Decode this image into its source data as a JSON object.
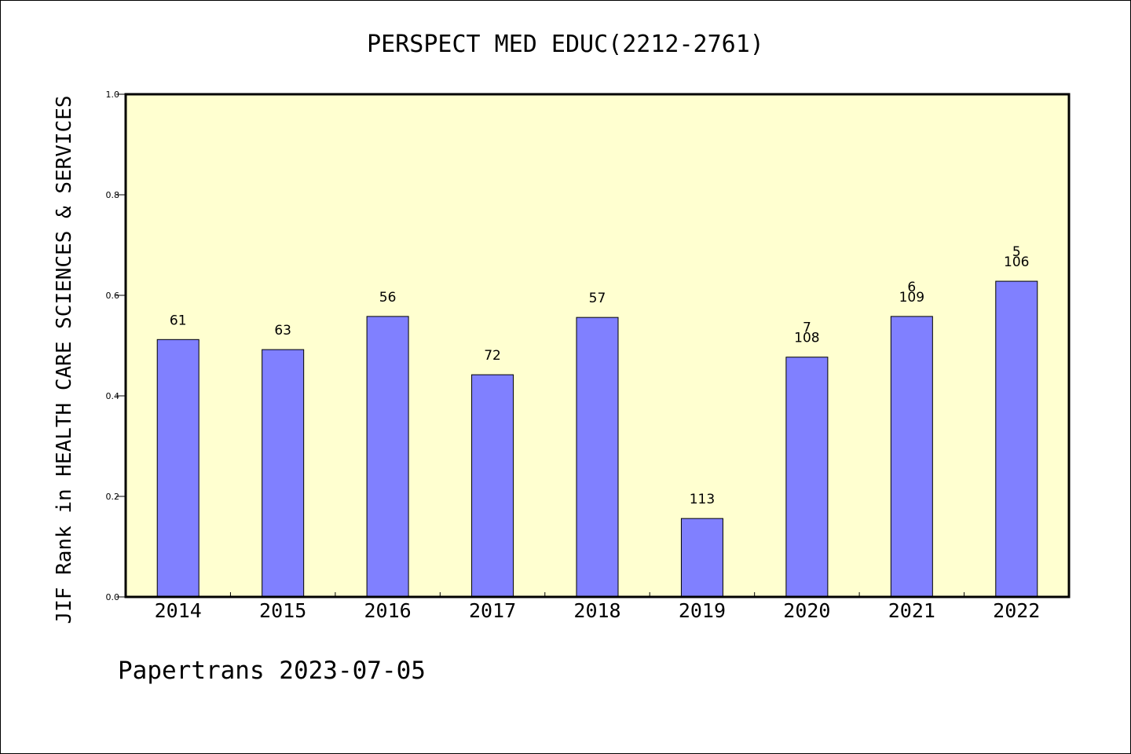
{
  "chart_data": {
    "type": "bar",
    "title": "PERSPECT MED EDUC(2212-2761)",
    "ylabel": "JIF Rank in HEALTH CARE SCIENCES & SERVICES",
    "xlabel": "",
    "ylim": [
      0,
      1
    ],
    "yticks": [
      "0.0",
      "0.2",
      "0.4",
      "0.6",
      "0.8",
      "1.0"
    ],
    "grid": false,
    "categories": [
      "2014",
      "2015",
      "2016",
      "2017",
      "2018",
      "2019",
      "2020",
      "2021",
      "2022"
    ],
    "values": [
      0.512,
      0.492,
      0.558,
      0.442,
      0.556,
      0.156,
      0.477,
      0.558,
      0.628
    ],
    "labels_top": [
      "",
      "",
      "",
      "",
      "",
      "",
      "7",
      "6",
      "5"
    ],
    "labels": [
      "61",
      "63",
      "56",
      "72",
      "57",
      "113",
      "108",
      "109",
      "106"
    ],
    "colors": {
      "plot_bg": "#ffffd0",
      "bar": "#8080ff",
      "bar_edge": "#000000"
    }
  },
  "footer": "Papertrans 2023-07-05"
}
